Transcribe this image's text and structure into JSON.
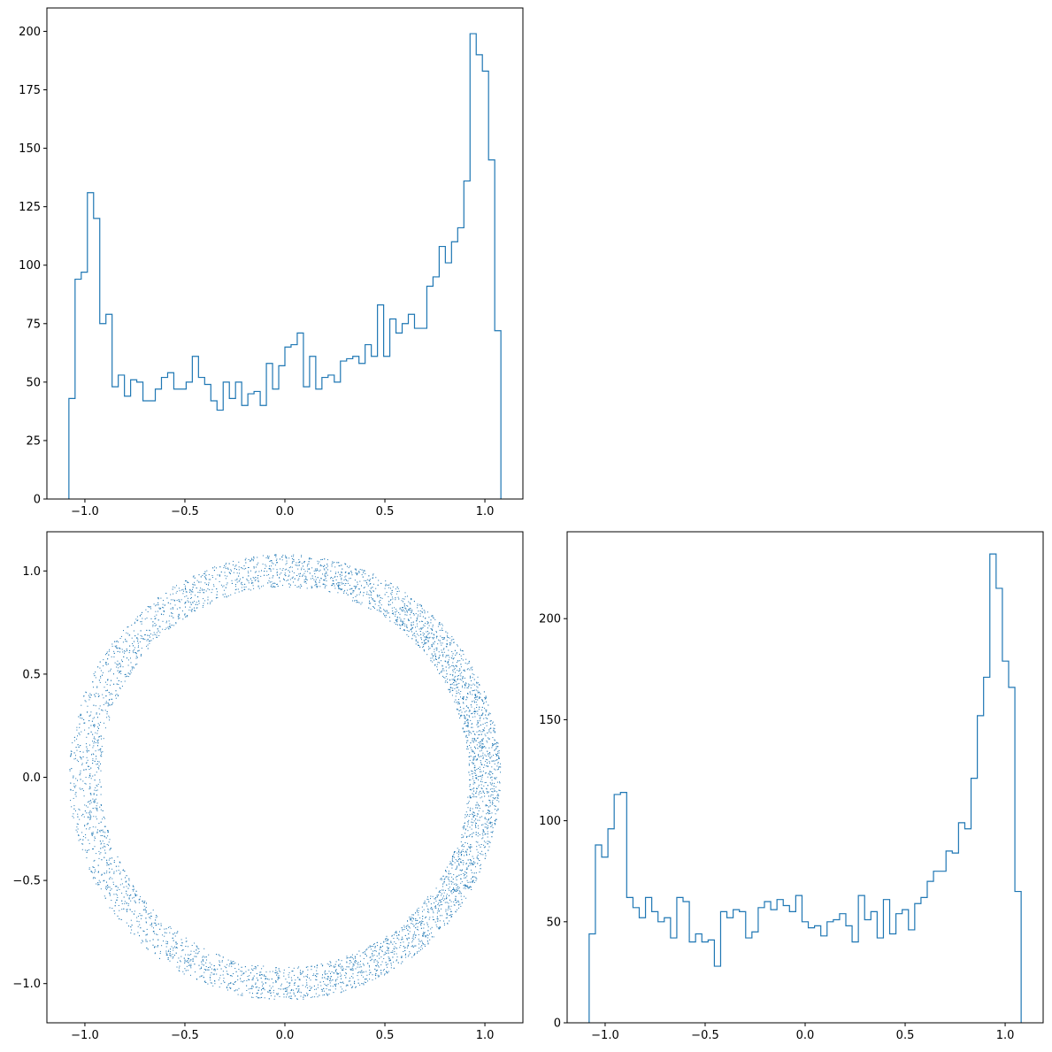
{
  "chart_data": [
    {
      "id": "top_left_histogram",
      "type": "histogram",
      "histtype": "step",
      "color": "#1f77b4",
      "bin_range": [
        -1.08,
        1.08
      ],
      "values": [
        43,
        94,
        97,
        131,
        120,
        75,
        79,
        48,
        53,
        44,
        51,
        50,
        42,
        42,
        47,
        52,
        54,
        47,
        47,
        50,
        61,
        52,
        49,
        42,
        38,
        50,
        43,
        50,
        40,
        45,
        46,
        40,
        58,
        47,
        57,
        65,
        66,
        71,
        48,
        61,
        47,
        52,
        53,
        50,
        59,
        60,
        61,
        58,
        66,
        61,
        83,
        61,
        77,
        71,
        75,
        79,
        73,
        73,
        91,
        95,
        108,
        101,
        110,
        116,
        136,
        199,
        190,
        183,
        145,
        72
      ],
      "xlim": [
        -1.19,
        1.19
      ],
      "ylim": [
        0,
        210
      ],
      "xticks": [
        -1.0,
        -0.5,
        0.0,
        0.5,
        1.0
      ],
      "xtick_labels": [
        "−1.0",
        "−0.5",
        "0.0",
        "0.5",
        "1.0"
      ],
      "yticks": [
        0,
        25,
        50,
        75,
        100,
        125,
        150,
        175,
        200
      ],
      "ytick_labels": [
        "0",
        "25",
        "50",
        "75",
        "100",
        "125",
        "150",
        "175",
        "200"
      ]
    },
    {
      "id": "bottom_left_scatter",
      "type": "scatter",
      "color": "#1f77b4",
      "description_of_points": "ring (annulus), density higher on the right side",
      "inner_radius": 0.92,
      "outer_radius": 1.08,
      "xlim": [
        -1.19,
        1.19
      ],
      "ylim": [
        -1.19,
        1.19
      ],
      "xticks": [
        -1.0,
        -0.5,
        0.0,
        0.5,
        1.0
      ],
      "xtick_labels": [
        "−1.0",
        "−0.5",
        "0.0",
        "0.5",
        "1.0"
      ],
      "yticks": [
        -1.0,
        -0.5,
        0.0,
        0.5,
        1.0
      ],
      "ytick_labels": [
        "−1.0",
        "−0.5",
        "0.0",
        "0.5",
        "1.0"
      ]
    },
    {
      "id": "bottom_right_histogram",
      "type": "histogram",
      "histtype": "step",
      "color": "#1f77b4",
      "bin_range": [
        -1.08,
        1.08
      ],
      "values": [
        44,
        88,
        82,
        96,
        113,
        114,
        62,
        57,
        52,
        62,
        55,
        50,
        52,
        42,
        62,
        60,
        40,
        44,
        40,
        41,
        28,
        55,
        52,
        56,
        55,
        42,
        45,
        57,
        60,
        56,
        61,
        58,
        55,
        63,
        50,
        47,
        48,
        43,
        50,
        51,
        54,
        48,
        40,
        63,
        51,
        55,
        42,
        61,
        44,
        54,
        56,
        46,
        59,
        62,
        70,
        75,
        75,
        85,
        84,
        99,
        96,
        121,
        152,
        171,
        232,
        215,
        179,
        166,
        65
      ],
      "xlim": [
        -1.19,
        1.19
      ],
      "ylim": [
        0,
        243
      ],
      "xticks": [
        -1.0,
        -0.5,
        0.0,
        0.5,
        1.0
      ],
      "xtick_labels": [
        "−1.0",
        "−0.5",
        "0.0",
        "0.5",
        "1.0"
      ],
      "yticks": [
        0,
        50,
        100,
        150,
        200
      ],
      "ytick_labels": [
        "0",
        "50",
        "100",
        "150",
        "200"
      ]
    }
  ]
}
